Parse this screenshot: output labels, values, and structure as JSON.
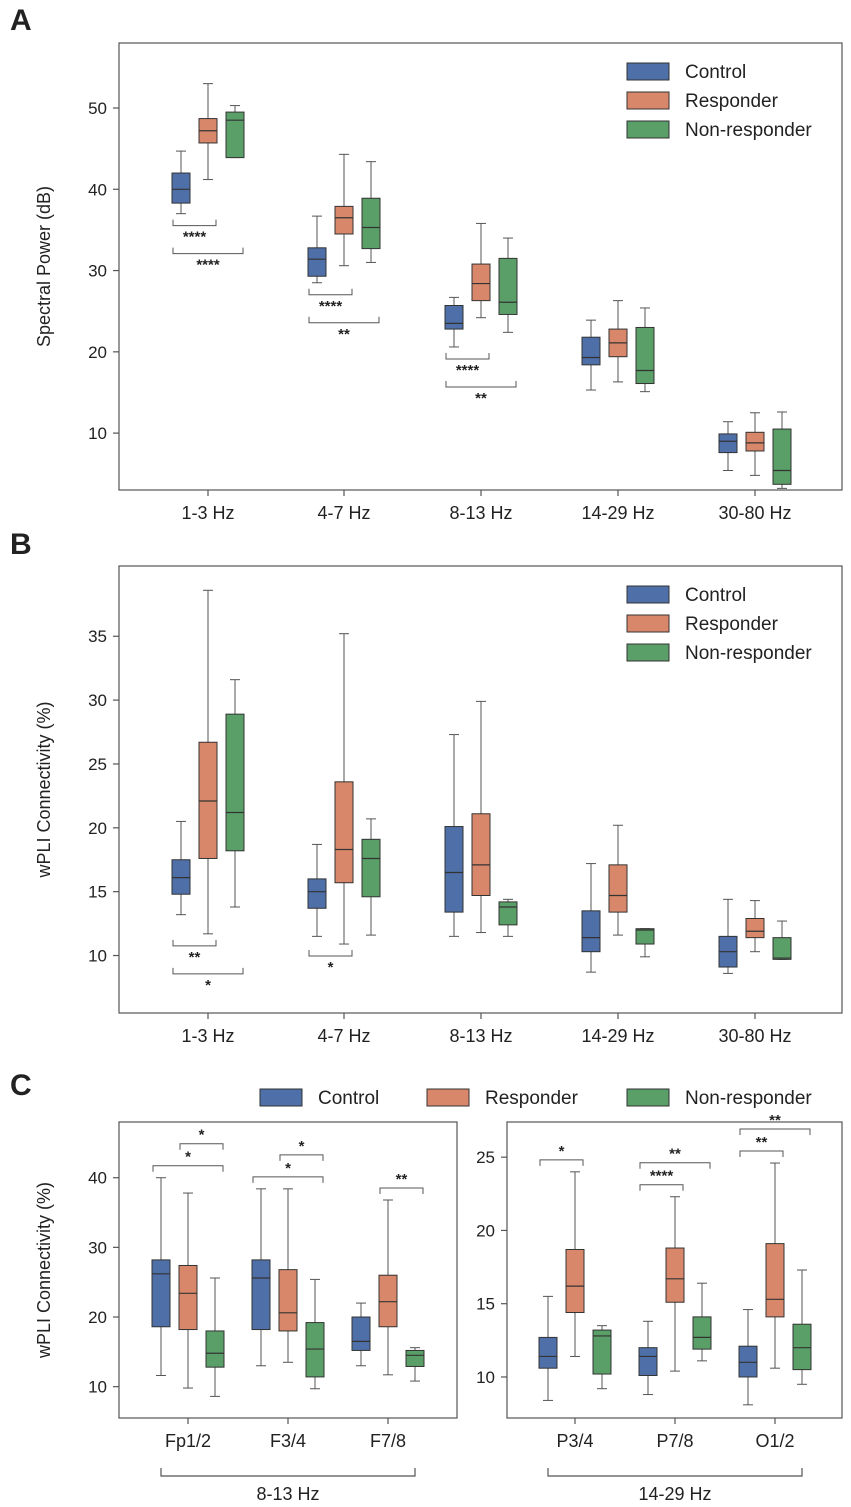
{
  "colors": {
    "Control": "#4e6fa8",
    "Responder": "#d9876a",
    "Non-responder": "#5a9f68",
    "frame": "#555555",
    "whisker": "#555555"
  },
  "chart_data": [
    {
      "panel": "A",
      "type": "box",
      "ylabel": "Spectral Power (dB)",
      "ylim": [
        3,
        58
      ],
      "yticks": [
        10,
        20,
        30,
        40,
        50
      ],
      "categories": [
        "1-3 Hz",
        "4-7 Hz",
        "8-13 Hz",
        "14-29 Hz",
        "30-80 Hz"
      ],
      "legend": [
        "Control",
        "Responder",
        "Non-responder"
      ],
      "legend_position": "top-right",
      "series": [
        {
          "name": "Control",
          "boxes": [
            {
              "lo": 37.0,
              "q1": 38.3,
              "med": 40.0,
              "q3": 42.0,
              "hi": 44.7
            },
            {
              "lo": 28.5,
              "q1": 29.3,
              "med": 31.4,
              "q3": 32.8,
              "hi": 36.7
            },
            {
              "lo": 20.6,
              "q1": 22.8,
              "med": 23.5,
              "q3": 25.7,
              "hi": 26.7
            },
            {
              "lo": 15.3,
              "q1": 18.4,
              "med": 19.3,
              "q3": 21.8,
              "hi": 23.9
            },
            {
              "lo": 5.4,
              "q1": 7.6,
              "med": 9.0,
              "q3": 9.9,
              "hi": 11.4
            }
          ]
        },
        {
          "name": "Responder",
          "boxes": [
            {
              "lo": 41.2,
              "q1": 45.7,
              "med": 47.2,
              "q3": 48.7,
              "hi": 53.0
            },
            {
              "lo": 30.6,
              "q1": 34.5,
              "med": 36.5,
              "q3": 37.9,
              "hi": 44.3
            },
            {
              "lo": 24.2,
              "q1": 26.3,
              "med": 28.4,
              "q3": 30.8,
              "hi": 35.8
            },
            {
              "lo": 16.3,
              "q1": 19.4,
              "med": 21.1,
              "q3": 22.8,
              "hi": 26.3
            },
            {
              "lo": 4.8,
              "q1": 7.8,
              "med": 8.8,
              "q3": 10.1,
              "hi": 12.5
            }
          ]
        },
        {
          "name": "Non-responder",
          "boxes": [
            {
              "lo": 43.9,
              "q1": 43.9,
              "med": 48.5,
              "q3": 49.5,
              "hi": 50.3
            },
            {
              "lo": 31.0,
              "q1": 32.7,
              "med": 35.3,
              "q3": 38.9,
              "hi": 43.4
            },
            {
              "lo": 22.4,
              "q1": 24.6,
              "med": 26.1,
              "q3": 31.5,
              "hi": 34.0
            },
            {
              "lo": 15.1,
              "q1": 16.1,
              "med": 17.7,
              "q3": 23.0,
              "hi": 25.4
            },
            {
              "lo": 3.2,
              "q1": 3.7,
              "med": 5.4,
              "q3": 10.5,
              "hi": 12.6
            }
          ]
        }
      ],
      "significance": [
        {
          "category": 0,
          "from": 0,
          "to": 1,
          "label": "****"
        },
        {
          "category": 0,
          "from": 0,
          "to": 2,
          "label": "****"
        },
        {
          "category": 1,
          "from": 0,
          "to": 1,
          "label": "****"
        },
        {
          "category": 1,
          "from": 0,
          "to": 2,
          "label": "**"
        },
        {
          "category": 2,
          "from": 0,
          "to": 1,
          "label": "****"
        },
        {
          "category": 2,
          "from": 0,
          "to": 2,
          "label": "**"
        }
      ]
    },
    {
      "panel": "B",
      "type": "box",
      "ylabel": "wPLI Connectivity (%)",
      "ylim": [
        5.5,
        40.5
      ],
      "yticks": [
        10,
        15,
        20,
        25,
        30,
        35
      ],
      "categories": [
        "1-3 Hz",
        "4-7 Hz",
        "8-13 Hz",
        "14-29 Hz",
        "30-80 Hz"
      ],
      "legend": [
        "Control",
        "Responder",
        "Non-responder"
      ],
      "legend_position": "top-right",
      "series": [
        {
          "name": "Control",
          "boxes": [
            {
              "lo": 13.2,
              "q1": 14.8,
              "med": 16.1,
              "q3": 17.5,
              "hi": 20.5
            },
            {
              "lo": 11.5,
              "q1": 13.7,
              "med": 15.0,
              "q3": 16.0,
              "hi": 18.7
            },
            {
              "lo": 11.5,
              "q1": 13.4,
              "med": 16.5,
              "q3": 20.1,
              "hi": 27.3
            },
            {
              "lo": 8.7,
              "q1": 10.3,
              "med": 11.4,
              "q3": 13.5,
              "hi": 17.2
            },
            {
              "lo": 8.6,
              "q1": 9.1,
              "med": 10.3,
              "q3": 11.5,
              "hi": 14.4
            }
          ]
        },
        {
          "name": "Responder",
          "boxes": [
            {
              "lo": 11.7,
              "q1": 17.6,
              "med": 22.1,
              "q3": 26.7,
              "hi": 38.6
            },
            {
              "lo": 10.9,
              "q1": 15.7,
              "med": 18.3,
              "q3": 23.6,
              "hi": 35.2
            },
            {
              "lo": 11.8,
              "q1": 14.7,
              "med": 17.1,
              "q3": 21.1,
              "hi": 29.9
            },
            {
              "lo": 11.6,
              "q1": 13.4,
              "med": 14.7,
              "q3": 17.1,
              "hi": 20.2
            },
            {
              "lo": 10.3,
              "q1": 11.4,
              "med": 11.9,
              "q3": 12.9,
              "hi": 14.3
            }
          ]
        },
        {
          "name": "Non-responder",
          "boxes": [
            {
              "lo": 13.8,
              "q1": 18.2,
              "med": 21.2,
              "q3": 28.9,
              "hi": 31.6
            },
            {
              "lo": 11.6,
              "q1": 14.6,
              "med": 17.6,
              "q3": 19.1,
              "hi": 20.7
            },
            {
              "lo": 11.5,
              "q1": 12.4,
              "med": 13.8,
              "q3": 14.2,
              "hi": 14.4
            },
            {
              "lo": 9.9,
              "q1": 10.9,
              "med": 12.0,
              "q3": 12.1,
              "hi": 12.1
            },
            {
              "lo": 9.7,
              "q1": 9.7,
              "med": 9.8,
              "q3": 11.4,
              "hi": 12.7
            }
          ]
        }
      ],
      "significance": [
        {
          "category": 0,
          "from": 0,
          "to": 1,
          "label": "**"
        },
        {
          "category": 0,
          "from": 0,
          "to": 2,
          "label": "*"
        },
        {
          "category": 1,
          "from": 0,
          "to": 1,
          "label": "*"
        }
      ]
    },
    {
      "panel": "C-left",
      "type": "box",
      "ylabel": "wPLI Connectivity (%)",
      "ylim": [
        5.5,
        48
      ],
      "yticks": [
        10,
        20,
        30,
        40
      ],
      "categories": [
        "Fp1/2",
        "F3/4",
        "F7/8"
      ],
      "group_label": "8-13 Hz",
      "series": [
        {
          "name": "Control",
          "boxes": [
            {
              "lo": 11.6,
              "q1": 18.6,
              "med": 26.2,
              "q3": 28.2,
              "hi": 40.0
            },
            {
              "lo": 13.0,
              "q1": 18.2,
              "med": 25.6,
              "q3": 28.2,
              "hi": 38.4
            },
            {
              "lo": 13.0,
              "q1": 15.2,
              "med": 16.5,
              "q3": 20.0,
              "hi": 22.0
            }
          ]
        },
        {
          "name": "Responder",
          "boxes": [
            {
              "lo": 9.8,
              "q1": 18.2,
              "med": 23.4,
              "q3": 27.4,
              "hi": 37.8
            },
            {
              "lo": 13.5,
              "q1": 18.0,
              "med": 20.6,
              "q3": 26.8,
              "hi": 38.4
            },
            {
              "lo": 11.7,
              "q1": 18.6,
              "med": 22.2,
              "q3": 26.0,
              "hi": 36.8
            }
          ]
        },
        {
          "name": "Non-responder",
          "boxes": [
            {
              "lo": 8.6,
              "q1": 12.8,
              "med": 14.8,
              "q3": 18.0,
              "hi": 25.6
            },
            {
              "lo": 9.7,
              "q1": 11.4,
              "med": 15.4,
              "q3": 19.2,
              "hi": 25.4
            },
            {
              "lo": 10.8,
              "q1": 12.9,
              "med": 14.5,
              "q3": 15.2,
              "hi": 15.6
            }
          ]
        }
      ],
      "significance": [
        {
          "category": 0,
          "from": 0,
          "to": 2,
          "label": "*"
        },
        {
          "category": 0,
          "from": 1,
          "to": 2,
          "label": "*"
        },
        {
          "category": 1,
          "from": 0,
          "to": 2,
          "label": "*"
        },
        {
          "category": 1,
          "from": 1,
          "to": 2,
          "label": "*"
        },
        {
          "category": 2,
          "from": 1,
          "to": 2,
          "label": "**"
        }
      ]
    },
    {
      "panel": "C-right",
      "type": "box",
      "ylabel": "",
      "ylim": [
        7.2,
        27.4
      ],
      "yticks": [
        10,
        15,
        20,
        25
      ],
      "categories": [
        "P3/4",
        "P7/8",
        "O1/2"
      ],
      "group_label": "14-29 Hz",
      "series": [
        {
          "name": "Control",
          "boxes": [
            {
              "lo": 8.4,
              "q1": 10.6,
              "med": 11.4,
              "q3": 12.7,
              "hi": 15.5
            },
            {
              "lo": 8.8,
              "q1": 10.1,
              "med": 11.4,
              "q3": 12.0,
              "hi": 13.8
            },
            {
              "lo": 8.1,
              "q1": 10.0,
              "med": 11.0,
              "q3": 12.1,
              "hi": 14.6
            }
          ]
        },
        {
          "name": "Responder",
          "boxes": [
            {
              "lo": 11.4,
              "q1": 14.4,
              "med": 16.2,
              "q3": 18.7,
              "hi": 24.0
            },
            {
              "lo": 10.4,
              "q1": 15.1,
              "med": 16.7,
              "q3": 18.8,
              "hi": 22.3
            },
            {
              "lo": 10.6,
              "q1": 14.1,
              "med": 15.3,
              "q3": 19.1,
              "hi": 24.6
            }
          ]
        },
        {
          "name": "Non-responder",
          "boxes": [
            {
              "lo": 9.2,
              "q1": 10.2,
              "med": 12.8,
              "q3": 13.2,
              "hi": 13.5
            },
            {
              "lo": 11.1,
              "q1": 11.9,
              "med": 12.7,
              "q3": 14.1,
              "hi": 16.4
            },
            {
              "lo": 9.5,
              "q1": 10.5,
              "med": 12.0,
              "q3": 13.6,
              "hi": 17.3
            }
          ]
        }
      ],
      "significance": [
        {
          "category": 0,
          "from": 0,
          "to": 1,
          "label": "*"
        },
        {
          "category": 1,
          "from": 0,
          "to": 1,
          "label": "****"
        },
        {
          "category": 1,
          "from": 0,
          "to": 2,
          "label": "**"
        },
        {
          "category": 2,
          "from": 0,
          "to": 1,
          "label": "**"
        },
        {
          "category": 2,
          "from": 0,
          "to": 2,
          "label": "**"
        }
      ]
    }
  ],
  "panel_letters": {
    "a": "A",
    "b": "B",
    "c": "C"
  },
  "legend_c": [
    "Control",
    "Responder",
    "Non-responder"
  ]
}
